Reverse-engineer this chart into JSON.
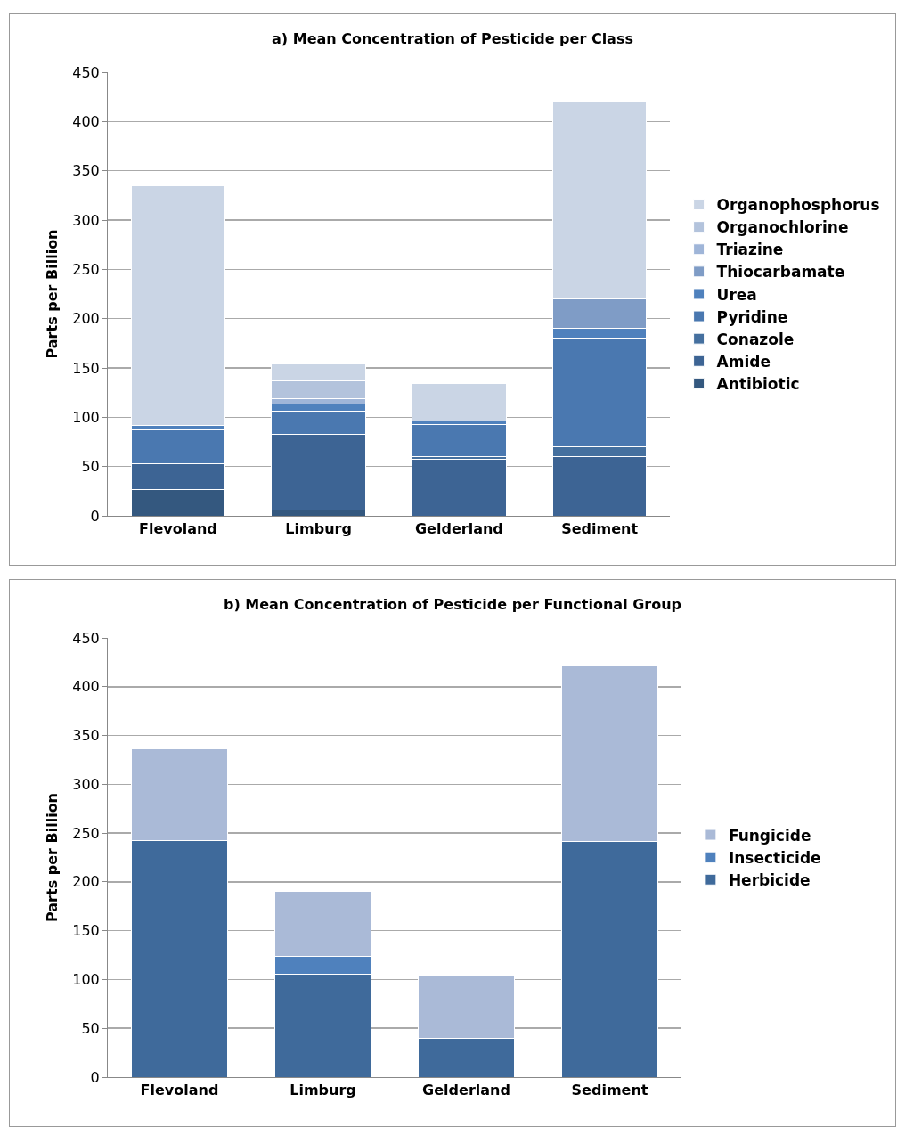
{
  "chart_data": [
    {
      "type": "bar",
      "stacked": true,
      "title": "a) Mean Concentration of Pesticide per Class",
      "ylabel": "Parts per Billion",
      "categories": [
        "Flevoland",
        "Limburg",
        "Gelderland",
        "Sediment"
      ],
      "ylim": [
        0,
        450
      ],
      "yticks": [
        0,
        50,
        100,
        150,
        200,
        250,
        300,
        350,
        400,
        450
      ],
      "grid": "y",
      "legend": "right",
      "series": [
        {
          "name": "Antibiotic",
          "color": "#34587f",
          "values": [
            27,
            6,
            0,
            0
          ]
        },
        {
          "name": "Amide",
          "color": "#3d6494",
          "values": [
            26,
            77,
            57,
            60
          ]
        },
        {
          "name": "Conazole",
          "color": "#45709f",
          "values": [
            0,
            0,
            3,
            10
          ]
        },
        {
          "name": "Pyridine",
          "color": "#4a78b0",
          "values": [
            34,
            23,
            33,
            110
          ]
        },
        {
          "name": "Urea",
          "color": "#4f81bd",
          "values": [
            5,
            7,
            3,
            10
          ]
        },
        {
          "name": "Thiocarbamate",
          "color": "#7f9cc6",
          "values": [
            0,
            0,
            0,
            30
          ]
        },
        {
          "name": "Triazine",
          "color": "#9fb5d8",
          "values": [
            0,
            6,
            0,
            0
          ]
        },
        {
          "name": "Organochlorine",
          "color": "#b3c3dc",
          "values": [
            0,
            18,
            0,
            0
          ]
        },
        {
          "name": "Organophosphorus",
          "color": "#cad5e5",
          "values": [
            243,
            17,
            38,
            201
          ]
        }
      ]
    },
    {
      "type": "bar",
      "stacked": true,
      "title": "b) Mean Concentration of Pesticide per Functional Group",
      "ylabel": "Parts per Billion",
      "categories": [
        "Flevoland",
        "Limburg",
        "Gelderland",
        "Sediment"
      ],
      "ylim": [
        0,
        450
      ],
      "yticks": [
        0,
        50,
        100,
        150,
        200,
        250,
        300,
        350,
        400,
        450
      ],
      "grid": "y",
      "legend": "right",
      "series": [
        {
          "name": "Herbicide",
          "color": "#3f6a9b",
          "values": [
            242,
            105,
            40,
            241
          ]
        },
        {
          "name": "Insecticide",
          "color": "#4f81bd",
          "values": [
            0,
            19,
            0,
            0
          ]
        },
        {
          "name": "Fungicide",
          "color": "#aabad7",
          "values": [
            94,
            66,
            64,
            181
          ]
        }
      ]
    }
  ]
}
